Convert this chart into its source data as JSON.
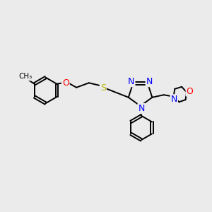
{
  "bg_color": "#ebebeb",
  "atom_colors": {
    "N": "#0000ff",
    "O": "#ff0000",
    "S": "#b8b800",
    "C": "#000000"
  },
  "font_size": 8.5,
  "fig_size": [
    3.0,
    3.0
  ],
  "dpi": 100,
  "lw": 1.4
}
